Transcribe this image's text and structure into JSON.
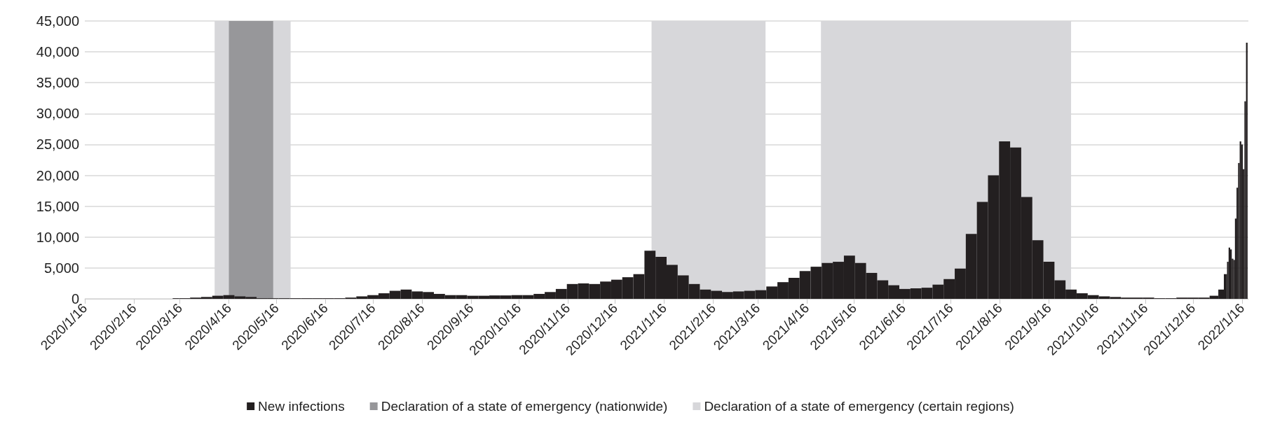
{
  "chart_data": {
    "type": "bar",
    "x": [
      "2020-03-12",
      "2020-03-19",
      "2020-03-26",
      "2020-04-02",
      "2020-04-09",
      "2020-04-16",
      "2020-04-23",
      "2020-04-30",
      "2020-05-07",
      "2020-05-14",
      "2020-05-21",
      "2020-05-28",
      "2020-06-04",
      "2020-06-11",
      "2020-06-18",
      "2020-06-25",
      "2020-07-02",
      "2020-07-09",
      "2020-07-16",
      "2020-07-23",
      "2020-07-30",
      "2020-08-06",
      "2020-08-13",
      "2020-08-20",
      "2020-08-27",
      "2020-09-03",
      "2020-09-10",
      "2020-09-17",
      "2020-09-24",
      "2020-10-01",
      "2020-10-08",
      "2020-10-15",
      "2020-10-22",
      "2020-10-29",
      "2020-11-05",
      "2020-11-12",
      "2020-11-19",
      "2020-11-26",
      "2020-12-03",
      "2020-12-10",
      "2020-12-17",
      "2020-12-24",
      "2020-12-31",
      "2021-01-07",
      "2021-01-14",
      "2021-01-21",
      "2021-01-28",
      "2021-02-04",
      "2021-02-11",
      "2021-02-18",
      "2021-02-25",
      "2021-03-04",
      "2021-03-11",
      "2021-03-18",
      "2021-03-25",
      "2021-04-01",
      "2021-04-08",
      "2021-04-15",
      "2021-04-22",
      "2021-04-29",
      "2021-05-06",
      "2021-05-13",
      "2021-05-20",
      "2021-05-27",
      "2021-06-03",
      "2021-06-10",
      "2021-06-17",
      "2021-06-24",
      "2021-07-01",
      "2021-07-08",
      "2021-07-15",
      "2021-07-22",
      "2021-07-29",
      "2021-08-05",
      "2021-08-12",
      "2021-08-19",
      "2021-08-26",
      "2021-09-02",
      "2021-09-09",
      "2021-09-16",
      "2021-09-23",
      "2021-09-30",
      "2021-10-07",
      "2021-10-14",
      "2021-10-21",
      "2021-10-28",
      "2021-11-04",
      "2021-11-11",
      "2021-11-18",
      "2021-11-25",
      "2021-12-02",
      "2021-12-09",
      "2021-12-16",
      "2021-12-23",
      "2021-12-30",
      "2022-01-03",
      "2022-01-06",
      "2022-01-07",
      "2022-01-08",
      "2022-01-09",
      "2022-01-10",
      "2022-01-11",
      "2022-01-12",
      "2022-01-13",
      "2022-01-14",
      "2022-01-15",
      "2022-01-16",
      "2022-01-17",
      "2022-01-18",
      "2022-01-19"
    ],
    "series": [
      {
        "name": "New infections",
        "color": "#231f20",
        "values": [
          100,
          100,
          200,
          300,
          500,
          600,
          400,
          300,
          100,
          100,
          100,
          100,
          100,
          100,
          100,
          100,
          200,
          400,
          600,
          900,
          1300,
          1500,
          1200,
          1100,
          800,
          600,
          600,
          500,
          500,
          550,
          550,
          600,
          600,
          800,
          1100,
          1600,
          2400,
          2500,
          2400,
          2800,
          3100,
          3500,
          4000,
          7800,
          6800,
          5500,
          3800,
          2400,
          1500,
          1300,
          1100,
          1200,
          1300,
          1400,
          2000,
          2700,
          3400,
          4500,
          5200,
          5800,
          6000,
          7000,
          5800,
          4200,
          3000,
          2200,
          1600,
          1700,
          1800,
          2300,
          3200,
          4900,
          10500,
          15700,
          20000,
          25500,
          24500,
          16500,
          9500,
          6000,
          3000,
          1500,
          900,
          600,
          400,
          300,
          200,
          200,
          200,
          100,
          100,
          200,
          200,
          200,
          500,
          1500,
          4000,
          6000,
          8300,
          8000,
          6500,
          6300,
          13000,
          18000,
          22000,
          25500,
          25000,
          21000,
          32000,
          41500
        ]
      }
    ],
    "xlim": [
      "2020-01-16",
      "2022-01-20"
    ],
    "xticks": [
      {
        "value": "2020-01-16",
        "label": "2020/1/16"
      },
      {
        "value": "2020-02-16",
        "label": "2020/2/16"
      },
      {
        "value": "2020-03-16",
        "label": "2020/3/16"
      },
      {
        "value": "2020-04-16",
        "label": "2020/4/16"
      },
      {
        "value": "2020-05-16",
        "label": "2020/5/16"
      },
      {
        "value": "2020-06-16",
        "label": "2020/6/16"
      },
      {
        "value": "2020-07-16",
        "label": "2020/7/16"
      },
      {
        "value": "2020-08-16",
        "label": "2020/8/16"
      },
      {
        "value": "2020-09-16",
        "label": "2020/9/16"
      },
      {
        "value": "2020-10-16",
        "label": "2020/10/16"
      },
      {
        "value": "2020-11-16",
        "label": "2020/11/16"
      },
      {
        "value": "2020-12-16",
        "label": "2020/12/16"
      },
      {
        "value": "2021-01-16",
        "label": "2021/1/16"
      },
      {
        "value": "2021-02-16",
        "label": "2021/2/16"
      },
      {
        "value": "2021-03-16",
        "label": "2021/3/16"
      },
      {
        "value": "2021-04-16",
        "label": "2021/4/16"
      },
      {
        "value": "2021-05-16",
        "label": "2021/5/16"
      },
      {
        "value": "2021-06-16",
        "label": "2021/6/16"
      },
      {
        "value": "2021-07-16",
        "label": "2021/7/16"
      },
      {
        "value": "2021-08-16",
        "label": "2021/8/16"
      },
      {
        "value": "2021-09-16",
        "label": "2021/9/16"
      },
      {
        "value": "2021-10-16",
        "label": "2021/10/16"
      },
      {
        "value": "2021-11-16",
        "label": "2021/11/16"
      },
      {
        "value": "2021-12-16",
        "label": "2021/12/16"
      },
      {
        "value": "2022-01-16",
        "label": "2022/1/16"
      }
    ],
    "ylim": [
      0,
      45000
    ],
    "yticks": [
      {
        "value": 0,
        "label": "0"
      },
      {
        "value": 5000,
        "label": "5,000"
      },
      {
        "value": 10000,
        "label": "10,000"
      },
      {
        "value": 15000,
        "label": "15,000"
      },
      {
        "value": 20000,
        "label": "20,000"
      },
      {
        "value": 25000,
        "label": "25,000"
      },
      {
        "value": 30000,
        "label": "30,000"
      },
      {
        "value": 35000,
        "label": "35,000"
      },
      {
        "value": 40000,
        "label": "40,000"
      },
      {
        "value": 45000,
        "label": "45,000"
      }
    ],
    "bands": [
      {
        "axis": "x",
        "from": "2020-04-16",
        "to": "2020-05-14",
        "label": "Declaration of a state of emergency (nationwide)",
        "color": "#97979a"
      },
      {
        "axis": "x",
        "from": "2020-04-07",
        "to": "2020-05-25",
        "label": "Declaration of a state of emergency (certain regions)",
        "color": "#d7d7da"
      },
      {
        "axis": "x",
        "from": "2021-01-08",
        "to": "2021-03-21",
        "color": "#d7d7da"
      },
      {
        "axis": "x",
        "from": "2021-04-25",
        "to": "2021-09-30",
        "color": "#d7d7da"
      }
    ],
    "grid": "y",
    "legend": "bottom"
  }
}
